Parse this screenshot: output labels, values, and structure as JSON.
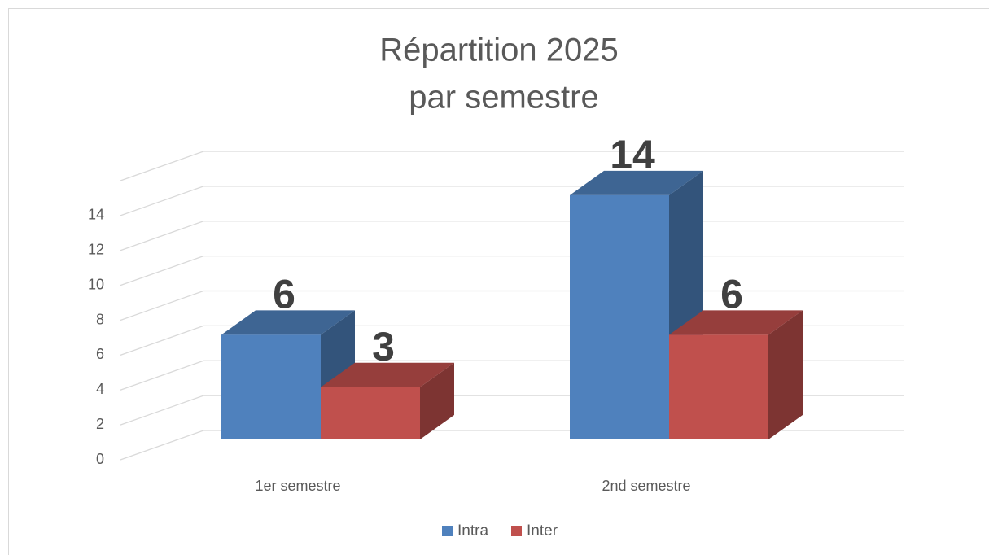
{
  "chart_data": {
    "type": "bar3d",
    "title": [
      "Répartition 2025",
      "par semestre"
    ],
    "categories": [
      "1er semestre",
      "2nd semestre"
    ],
    "series": [
      {
        "name": "Intra",
        "color": "#4f81bd",
        "values": [
          6,
          14
        ]
      },
      {
        "name": "Inter",
        "color": "#c0504d",
        "values": [
          3,
          6
        ]
      }
    ],
    "ylim": [
      0,
      16
    ],
    "yticks": [
      0,
      2,
      4,
      6,
      8,
      10,
      12,
      14
    ],
    "grid": true,
    "legend": "bottom"
  }
}
